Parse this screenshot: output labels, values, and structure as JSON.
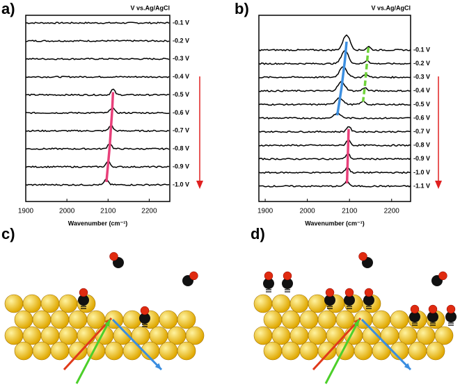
{
  "chart_data": [
    {
      "type": "spectra",
      "panel_label": "a)",
      "reference": "V vs.Ag/AgCl",
      "x_label": "Wavenumber (cm⁻¹)",
      "xlim": [
        1900,
        2250
      ],
      "xticks": [
        1900,
        2000,
        2100,
        2200
      ],
      "categories": [
        "-0.1 V",
        "-0.2 V",
        "-0.3 V",
        "-0.4 V",
        "-0.5 V",
        "-0.6 V",
        "-0.7 V",
        "-0.8 V",
        "-0.9 V",
        "-1.0 V"
      ],
      "series": [
        {
          "color": "#e8407a",
          "values": [
            null,
            null,
            null,
            null,
            2112,
            2110,
            2107,
            2104,
            2100,
            2096
          ]
        }
      ]
    },
    {
      "type": "spectra",
      "panel_label": "b)",
      "reference": "V vs.Ag/AgCl",
      "x_label": "Wavenumber (cm⁻¹)",
      "xlim": [
        1885,
        2245
      ],
      "xticks": [
        1900,
        2000,
        2100,
        2200
      ],
      "categories": [
        "-0.1 V",
        "-0.2 V",
        "-0.3 V",
        "-0.4 V",
        "-0.5 V",
        "-0.6 V",
        "-0.7 V",
        "-0.8 V",
        "-0.9 V",
        "-1.0 V",
        "-1.1 V"
      ],
      "series": [
        {
          "color": "#3d8fe0",
          "values": [
            2093,
            2089,
            2085,
            2081,
            2076,
            2071,
            null,
            null,
            null,
            null,
            null
          ]
        },
        {
          "color": "#6fd23a",
          "values": [
            2145,
            2142,
            2139,
            2136,
            2132,
            null,
            null,
            null,
            null,
            null,
            null
          ]
        },
        {
          "color": "#e8407a",
          "values": [
            null,
            null,
            null,
            null,
            null,
            null,
            2098,
            2097,
            2096,
            2095,
            2094
          ]
        }
      ]
    }
  ],
  "illustrations": [
    {
      "panel_label": "c)"
    },
    {
      "panel_label": "d)"
    }
  ]
}
